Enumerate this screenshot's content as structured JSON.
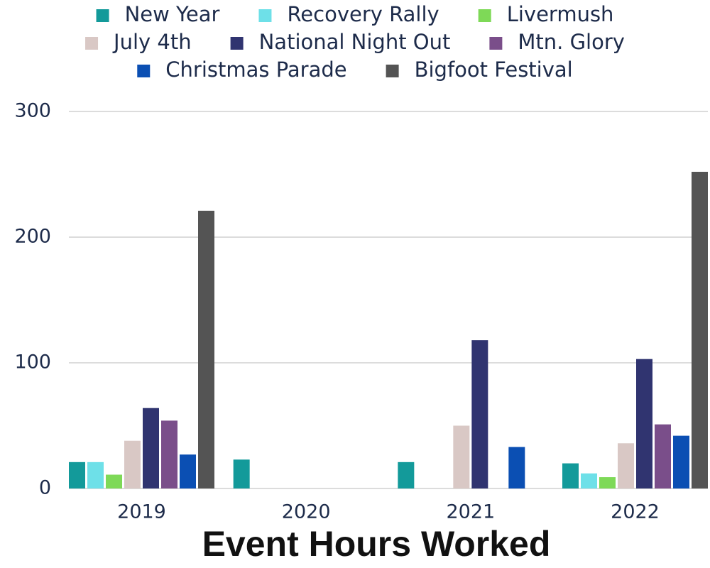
{
  "chart_data": {
    "type": "bar",
    "title": "Event Hours Worked",
    "categories": [
      "2019",
      "2020",
      "2021",
      "2022"
    ],
    "series": [
      {
        "name": "New Year",
        "color": "#139a9a",
        "values": [
          21,
          23,
          21,
          20
        ]
      },
      {
        "name": "Recovery Rally",
        "color": "#6ee0e8",
        "values": [
          21,
          0,
          0,
          12
        ]
      },
      {
        "name": "Livermush",
        "color": "#7ed957",
        "values": [
          11,
          0,
          0,
          9
        ]
      },
      {
        "name": "July 4th",
        "color": "#d9c8c5",
        "values": [
          38,
          0,
          50,
          36
        ]
      },
      {
        "name": "National Night Out",
        "color": "#303470",
        "values": [
          64,
          0,
          118,
          103
        ]
      },
      {
        "name": "Mtn. Glory",
        "color": "#7a4e8a",
        "values": [
          54,
          0,
          0,
          51
        ]
      },
      {
        "name": "Christmas Parade",
        "color": "#0b4fb3",
        "values": [
          27,
          0,
          33,
          42
        ]
      },
      {
        "name": "Bigfoot Festival",
        "color": "#545454",
        "values": [
          221,
          0,
          0,
          252
        ]
      }
    ],
    "ylim": [
      0,
      300
    ],
    "yticks": [
      0,
      100,
      200,
      300
    ],
    "grid": true,
    "legend": "top"
  }
}
